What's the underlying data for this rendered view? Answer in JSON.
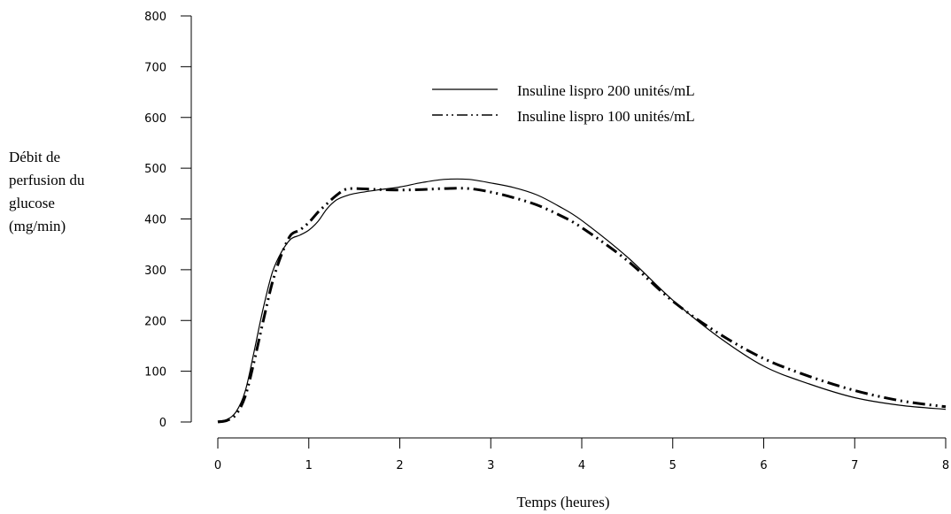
{
  "chart_data": {
    "type": "line",
    "xlabel": "Temps (heures)",
    "ylabel_lines": [
      "Débit de",
      "perfusion du",
      "glucose",
      "(mg/min)"
    ],
    "xlim": [
      0,
      8
    ],
    "ylim": [
      0,
      800
    ],
    "x_ticks": [
      "0",
      "1",
      "2",
      "3",
      "4",
      "5",
      "6",
      "7",
      "8"
    ],
    "y_ticks": [
      "0",
      "100",
      "200",
      "300",
      "400",
      "500",
      "600",
      "700",
      "800"
    ],
    "grid": false,
    "legend_position": "top-right",
    "series": [
      {
        "name": "Insuline lispro 200 unités/mL",
        "style": "solid",
        "color": "#000000",
        "x": [
          0,
          0.1,
          0.2,
          0.3,
          0.4,
          0.5,
          0.6,
          0.7,
          0.8,
          0.9,
          1.0,
          1.1,
          1.2,
          1.3,
          1.4,
          1.5,
          1.75,
          2.0,
          2.25,
          2.5,
          2.75,
          3.0,
          3.25,
          3.5,
          3.75,
          4.0,
          4.5,
          5.0,
          5.5,
          6.0,
          6.5,
          7.0,
          7.5,
          8.0
        ],
        "y": [
          2,
          5,
          20,
          60,
          140,
          225,
          295,
          335,
          360,
          368,
          378,
          395,
          420,
          437,
          445,
          450,
          457,
          463,
          472,
          478,
          478,
          471,
          462,
          448,
          425,
          397,
          325,
          240,
          168,
          110,
          75,
          48,
          33,
          25
        ]
      },
      {
        "name": "Insuline lispro 100 unités/mL",
        "style": "dash-dot-dot",
        "color": "#000000",
        "x": [
          0,
          0.1,
          0.2,
          0.3,
          0.4,
          0.5,
          0.6,
          0.7,
          0.8,
          0.9,
          1.0,
          1.1,
          1.2,
          1.3,
          1.4,
          1.5,
          1.75,
          2.0,
          2.25,
          2.5,
          2.75,
          3.0,
          3.25,
          3.5,
          3.75,
          4.0,
          4.5,
          5.0,
          5.5,
          6.0,
          6.5,
          7.0,
          7.5,
          8.0
        ],
        "y": [
          0,
          3,
          15,
          50,
          120,
          200,
          275,
          330,
          368,
          378,
          393,
          413,
          430,
          446,
          458,
          460,
          458,
          457,
          458,
          460,
          460,
          453,
          442,
          428,
          408,
          383,
          318,
          238,
          175,
          125,
          90,
          62,
          42,
          30
        ]
      }
    ]
  }
}
